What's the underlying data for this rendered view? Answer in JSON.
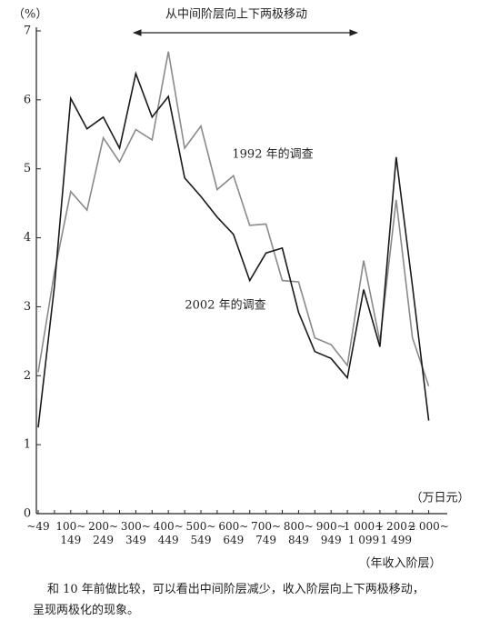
{
  "chart_data": {
    "type": "line",
    "y_unit": "（%）",
    "x_unit": "（万日元）",
    "x_label": "（年收入阶层）",
    "arrow_annotation": "从中间阶层向上下两极移动",
    "categories": [
      "~49",
      null,
      "100~\n149",
      null,
      "200~\n249",
      null,
      "300~\n349",
      null,
      "400~\n449",
      null,
      "500~\n549",
      null,
      "600~\n649",
      null,
      "700~\n749",
      null,
      "800~\n849",
      null,
      "900~\n949",
      null,
      "1 000~\n1 099",
      null,
      "1 200~\n1 499",
      null,
      "2 000~"
    ],
    "series": [
      {
        "name": "1992 年的调查",
        "color": "#8a8a8a",
        "values": [
          2.05,
          3.5,
          4.67,
          4.4,
          5.45,
          5.1,
          5.57,
          5.42,
          6.7,
          5.3,
          5.62,
          4.7,
          4.9,
          4.18,
          4.2,
          3.38,
          3.36,
          2.55,
          2.45,
          2.15,
          3.67,
          2.5,
          4.55,
          2.55,
          1.85
        ]
      },
      {
        "name": "2002 年的调查",
        "color": "#1a1a1a",
        "values": [
          1.25,
          3.3,
          6.02,
          5.58,
          5.75,
          5.3,
          6.38,
          5.75,
          6.05,
          4.87,
          4.6,
          4.3,
          4.05,
          3.38,
          3.78,
          3.85,
          2.92,
          2.35,
          2.25,
          1.97,
          3.25,
          2.42,
          5.17,
          3.3,
          1.35
        ]
      }
    ],
    "ylim": [
      0,
      7
    ],
    "yticks": [
      0,
      1,
      2,
      3,
      4,
      5,
      6,
      7
    ],
    "caption": [
      "和 10 年前做比较，可以看出中间阶层减少，收入阶层向上下两极移动，",
      "呈现两极化的现象。"
    ]
  }
}
